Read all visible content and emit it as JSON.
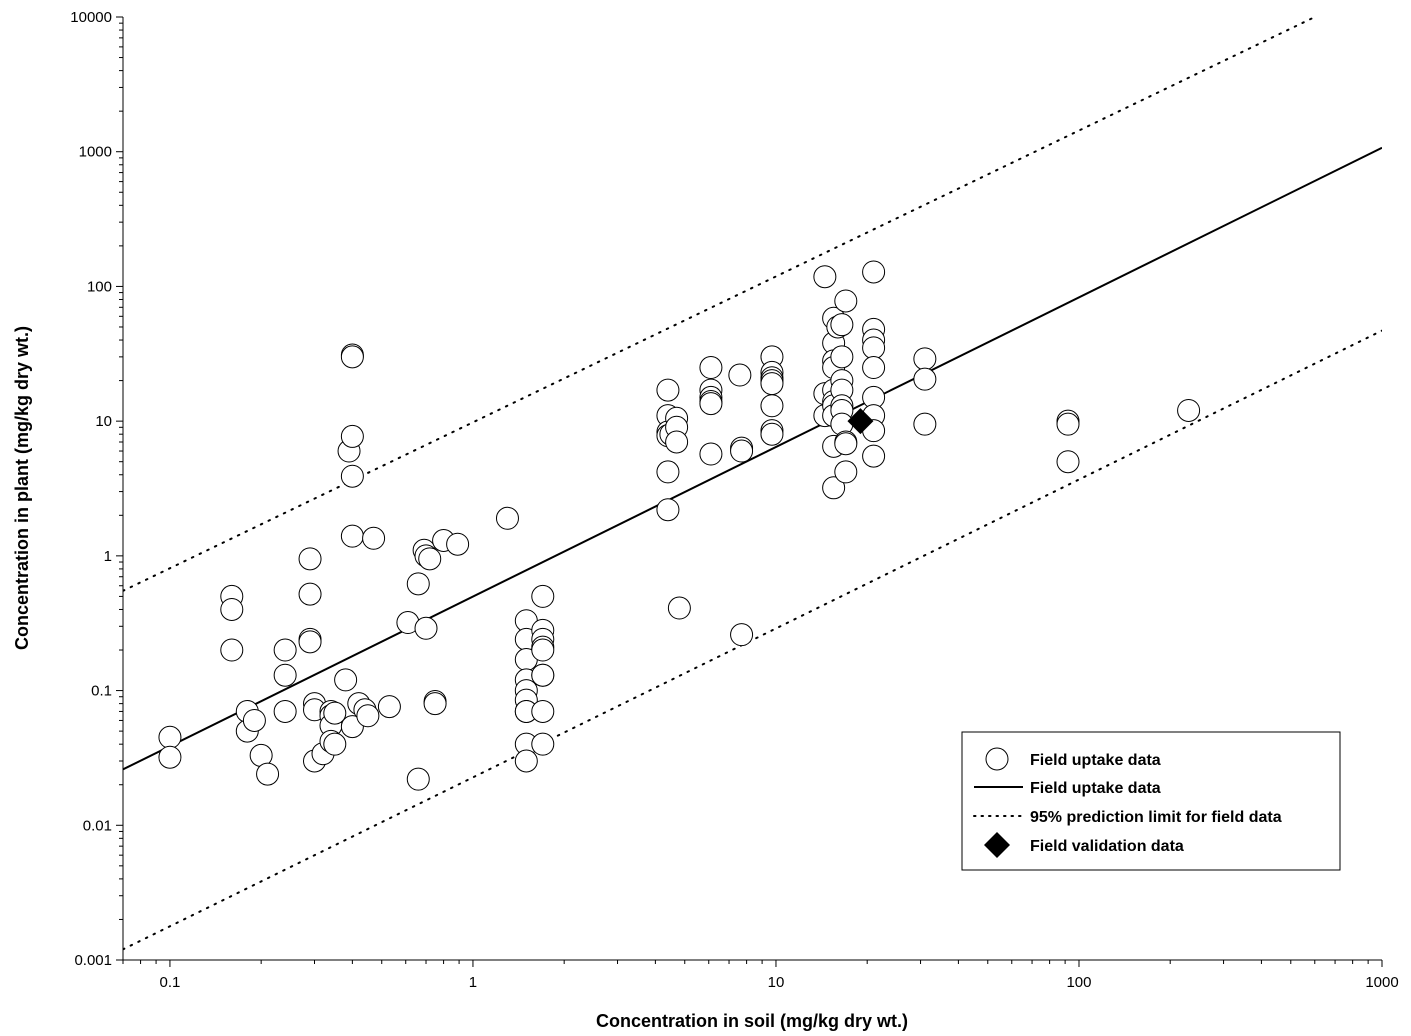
{
  "chart_data": {
    "type": "scatter",
    "xscale": "log",
    "yscale": "log",
    "xlim": [
      0.07,
      1000
    ],
    "ylim": [
      0.001,
      10000
    ],
    "xlabel": "Concentration in soil (mg/kg dry wt.)",
    "ylabel": "Concentration in plant (mg/kg dry wt.)",
    "x_ticks": [
      {
        "value": 0.1,
        "label": "0.1"
      },
      {
        "value": 1,
        "label": "1"
      },
      {
        "value": 10,
        "label": "10"
      },
      {
        "value": 100,
        "label": "100"
      },
      {
        "value": 1000,
        "label": "1000"
      }
    ],
    "y_ticks": [
      {
        "value": 0.001,
        "label": "0.001"
      },
      {
        "value": 0.01,
        "label": "0.01"
      },
      {
        "value": 0.1,
        "label": "0.1"
      },
      {
        "value": 1,
        "label": "1"
      },
      {
        "value": 10,
        "label": "10"
      },
      {
        "value": 100,
        "label": "100"
      },
      {
        "value": 1000,
        "label": "1000"
      },
      {
        "value": 10000,
        "label": "10000"
      }
    ],
    "grid": false,
    "legend_position": "bottom-right",
    "series": [
      {
        "name": "Field uptake data",
        "type": "scatter",
        "marker": "circle",
        "points": [
          [
            0.1,
            0.045
          ],
          [
            0.1,
            0.032
          ],
          [
            0.16,
            0.5
          ],
          [
            0.16,
            0.4
          ],
          [
            0.16,
            0.2
          ],
          [
            0.18,
            0.07
          ],
          [
            0.18,
            0.05
          ],
          [
            0.19,
            0.06
          ],
          [
            0.2,
            0.033
          ],
          [
            0.21,
            0.024
          ],
          [
            0.24,
            0.2
          ],
          [
            0.24,
            0.13
          ],
          [
            0.24,
            0.07
          ],
          [
            0.29,
            0.95
          ],
          [
            0.29,
            0.52
          ],
          [
            0.29,
            0.24
          ],
          [
            0.29,
            0.23
          ],
          [
            0.3,
            0.08
          ],
          [
            0.3,
            0.072
          ],
          [
            0.3,
            0.03
          ],
          [
            0.32,
            0.034
          ],
          [
            0.34,
            0.07
          ],
          [
            0.34,
            0.065
          ],
          [
            0.34,
            0.055
          ],
          [
            0.34,
            0.042
          ],
          [
            0.35,
            0.068
          ],
          [
            0.35,
            0.04
          ],
          [
            0.38,
            0.12
          ],
          [
            0.39,
            6.0
          ],
          [
            0.4,
            7.7
          ],
          [
            0.4,
            3.9
          ],
          [
            0.4,
            31
          ],
          [
            0.4,
            30
          ],
          [
            0.4,
            1.4
          ],
          [
            0.4,
            0.054
          ],
          [
            0.42,
            0.08
          ],
          [
            0.44,
            0.072
          ],
          [
            0.45,
            0.065
          ],
          [
            0.47,
            1.35
          ],
          [
            0.53,
            0.076
          ],
          [
            0.61,
            0.32
          ],
          [
            0.66,
            0.62
          ],
          [
            0.66,
            0.022
          ],
          [
            0.69,
            1.1
          ],
          [
            0.7,
            1.0
          ],
          [
            0.7,
            0.29
          ],
          [
            0.72,
            0.95
          ],
          [
            0.75,
            0.083
          ],
          [
            0.75,
            0.08
          ],
          [
            0.8,
            1.3
          ],
          [
            0.89,
            1.22
          ],
          [
            1.3,
            1.9
          ],
          [
            1.5,
            0.33
          ],
          [
            1.5,
            0.24
          ],
          [
            1.5,
            0.17
          ],
          [
            1.5,
            0.12
          ],
          [
            1.5,
            0.1
          ],
          [
            1.5,
            0.085
          ],
          [
            1.5,
            0.07
          ],
          [
            1.5,
            0.07
          ],
          [
            1.5,
            0.04
          ],
          [
            1.5,
            0.03
          ],
          [
            1.7,
            0.5
          ],
          [
            1.7,
            0.28
          ],
          [
            1.7,
            0.24
          ],
          [
            1.7,
            0.21
          ],
          [
            1.7,
            0.2
          ],
          [
            1.7,
            0.13
          ],
          [
            1.7,
            0.13
          ],
          [
            1.7,
            0.07
          ],
          [
            1.7,
            0.04
          ],
          [
            4.4,
            17
          ],
          [
            4.4,
            11
          ],
          [
            4.4,
            8.3
          ],
          [
            4.4,
            7.8
          ],
          [
            4.4,
            4.2
          ],
          [
            4.4,
            2.2
          ],
          [
            4.5,
            8.0
          ],
          [
            4.7,
            10.5
          ],
          [
            4.7,
            9.0
          ],
          [
            4.7,
            7.0
          ],
          [
            4.8,
            0.41
          ],
          [
            6.1,
            25
          ],
          [
            6.1,
            17
          ],
          [
            6.1,
            15
          ],
          [
            6.1,
            14
          ],
          [
            6.1,
            13.5
          ],
          [
            6.1,
            5.7
          ],
          [
            7.6,
            22
          ],
          [
            7.7,
            6.3
          ],
          [
            7.7,
            6.0
          ],
          [
            7.7,
            0.26
          ],
          [
            9.7,
            30
          ],
          [
            9.7,
            23
          ],
          [
            9.7,
            21
          ],
          [
            9.7,
            20
          ],
          [
            9.7,
            19
          ],
          [
            9.7,
            13
          ],
          [
            9.7,
            8.5
          ],
          [
            9.7,
            8.0
          ],
          [
            14.5,
            118
          ],
          [
            14.5,
            16
          ],
          [
            14.5,
            11
          ],
          [
            15.5,
            58
          ],
          [
            15.5,
            38
          ],
          [
            15.5,
            28
          ],
          [
            15.5,
            25
          ],
          [
            15.5,
            17
          ],
          [
            15.5,
            14
          ],
          [
            15.5,
            13
          ],
          [
            15.5,
            11
          ],
          [
            15.5,
            6.5
          ],
          [
            15.5,
            3.2
          ],
          [
            16,
            50
          ],
          [
            16.5,
            52
          ],
          [
            16.5,
            30
          ],
          [
            16.5,
            20
          ],
          [
            16.5,
            17
          ],
          [
            16.5,
            13
          ],
          [
            16.5,
            12
          ],
          [
            16.5,
            9.5
          ],
          [
            17,
            78
          ],
          [
            17,
            7.0
          ],
          [
            17,
            4.2
          ],
          [
            17,
            6.8
          ],
          [
            21,
            128
          ],
          [
            21,
            48
          ],
          [
            21,
            40
          ],
          [
            21,
            35
          ],
          [
            21,
            25
          ],
          [
            21,
            15
          ],
          [
            21,
            11
          ],
          [
            21,
            8.5
          ],
          [
            21,
            5.5
          ],
          [
            31,
            29
          ],
          [
            31,
            20.5
          ],
          [
            31,
            9.5
          ],
          [
            92,
            10
          ],
          [
            92,
            9.5
          ],
          [
            92,
            5.0
          ],
          [
            230,
            12
          ]
        ]
      },
      {
        "name": "Field uptake data",
        "type": "line",
        "style": "solid",
        "points": [
          [
            0.07,
            0.026
          ],
          [
            1000,
            1070
          ]
        ]
      },
      {
        "name": "95% prediction limit for field data",
        "type": "line",
        "style": "dotted",
        "points": [
          [
            0.07,
            0.55
          ],
          [
            600,
            10000
          ]
        ]
      },
      {
        "name": "95% prediction limit for field data",
        "type": "line",
        "style": "dotted",
        "points": [
          [
            0.07,
            0.0012
          ],
          [
            1000,
            47
          ]
        ]
      },
      {
        "name": "Field validation data",
        "type": "scatter",
        "marker": "diamond",
        "points": [
          [
            19,
            10
          ]
        ]
      }
    ],
    "legend": [
      {
        "label": "Field uptake data",
        "symbol": "circle"
      },
      {
        "label": "Field uptake data",
        "symbol": "solid-line"
      },
      {
        "label": "95% prediction limit for field data",
        "symbol": "dotted-line"
      },
      {
        "label": "Field validation data",
        "symbol": "diamond"
      }
    ]
  }
}
